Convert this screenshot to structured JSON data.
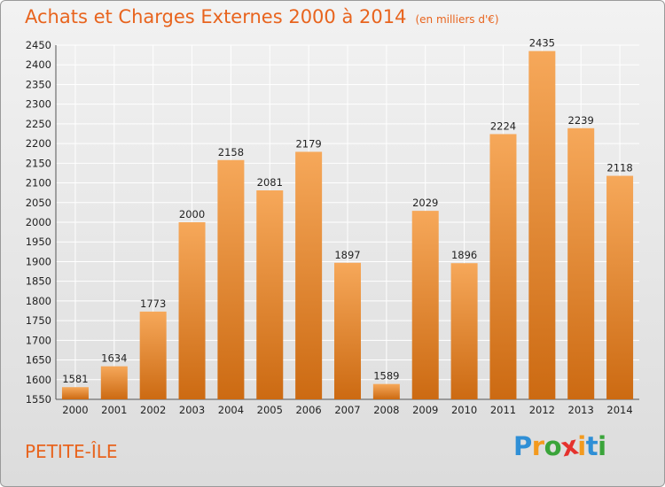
{
  "header": {
    "title": "Achats et Charges Externes 2000 à 2014",
    "unit": "(en milliers d'€)"
  },
  "footer": {
    "place": "PETITE-ÎLE"
  },
  "brand": {
    "letters": [
      "P",
      "r",
      "o",
      "x",
      "i",
      "t",
      "i"
    ],
    "colors": [
      "#2f8fd6",
      "#f39a1e",
      "#3aa43a",
      "#e5322d",
      "#f39a1e",
      "#2f8fd6",
      "#3aa43a"
    ]
  },
  "colors": {
    "bar_top": "#f6a85a",
    "bar_bottom": "#cc6a12",
    "grid": "#ffffff"
  },
  "chart_data": {
    "type": "bar",
    "title": "Achats et Charges Externes 2000 à 2014",
    "subtitle": "(en milliers d'€)",
    "xlabel": "",
    "ylabel": "",
    "categories": [
      "2000",
      "2001",
      "2002",
      "2003",
      "2004",
      "2005",
      "2006",
      "2007",
      "2008",
      "2009",
      "2010",
      "2011",
      "2012",
      "2013",
      "2014"
    ],
    "values": [
      1581,
      1634,
      1773,
      2000,
      2158,
      2081,
      2179,
      1897,
      1589,
      2029,
      1896,
      2224,
      2435,
      2239,
      2118
    ],
    "data_labels": [
      "1581",
      "1634",
      "1773",
      "2000",
      "2158",
      "2081",
      "2179",
      "1897",
      "1589",
      "2029",
      "1896",
      "2224",
      "2435",
      "2239",
      "2118"
    ],
    "ylim": [
      1550,
      2450
    ],
    "yticks": [
      1550,
      1600,
      1650,
      1700,
      1750,
      1800,
      1850,
      1900,
      1950,
      2000,
      2050,
      2100,
      2150,
      2200,
      2250,
      2300,
      2350,
      2400,
      2450
    ],
    "grid": true,
    "legend": "none"
  }
}
